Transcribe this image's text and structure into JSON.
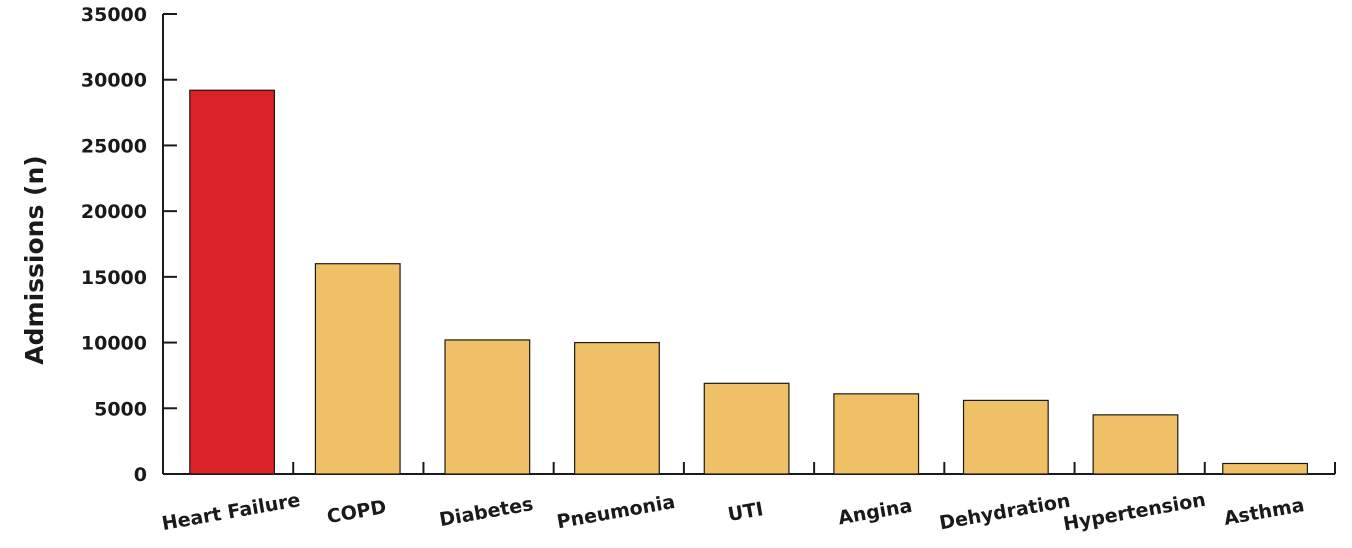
{
  "chart_data": {
    "type": "bar",
    "title": "",
    "xlabel": "",
    "ylabel": "Admissions (n)",
    "ylim": [
      0,
      35000
    ],
    "yticks": [
      "0",
      "5000",
      "10000",
      "15000",
      "20000",
      "25000",
      "30000",
      "35000"
    ],
    "categories": [
      "Heart Failure",
      "COPD",
      "Diabetes",
      "Pneumonia",
      "UTI",
      "Angina",
      "Dehydration",
      "Hypertension",
      "Asthma"
    ],
    "values": [
      29200,
      16000,
      10200,
      10000,
      6900,
      6100,
      5600,
      4500,
      800
    ],
    "bar_colors": [
      "#d92126",
      "#f0c066",
      "#f0c066",
      "#f0c066",
      "#f0c066",
      "#f0c066",
      "#f0c066",
      "#f0c066",
      "#f0c066"
    ],
    "grid": false,
    "legend": "none"
  }
}
